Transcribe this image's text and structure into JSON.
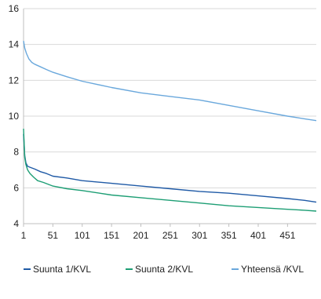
{
  "chart_data": {
    "type": "line",
    "title": "",
    "xlabel": "",
    "ylabel": "",
    "ylim": [
      4,
      16
    ],
    "xlim": [
      1,
      500
    ],
    "yticks": [
      4,
      6,
      8,
      10,
      12,
      14,
      16
    ],
    "xticks": [
      1,
      51,
      101,
      151,
      201,
      251,
      301,
      351,
      401,
      451
    ],
    "grid": "horizontal",
    "legend_position": "bottom",
    "series": [
      {
        "name": "Suunta 1/KVL",
        "color": "#1f5aa6",
        "x": [
          1,
          3,
          5,
          8,
          12,
          20,
          30,
          40,
          51,
          75,
          101,
          151,
          201,
          251,
          301,
          351,
          401,
          451,
          480,
          500
        ],
        "y": [
          9.0,
          7.8,
          7.4,
          7.2,
          7.15,
          7.05,
          6.9,
          6.8,
          6.65,
          6.55,
          6.4,
          6.25,
          6.1,
          5.95,
          5.8,
          5.7,
          5.55,
          5.4,
          5.3,
          5.2
        ]
      },
      {
        "name": "Suunta 2/KVL",
        "color": "#1d9e74",
        "x": [
          1,
          3,
          5,
          8,
          12,
          18,
          25,
          35,
          51,
          75,
          101,
          151,
          201,
          251,
          301,
          351,
          401,
          451,
          480,
          500
        ],
        "y": [
          9.3,
          7.7,
          7.3,
          7.0,
          6.8,
          6.6,
          6.4,
          6.3,
          6.1,
          5.95,
          5.85,
          5.6,
          5.45,
          5.3,
          5.15,
          5.0,
          4.9,
          4.8,
          4.75,
          4.7
        ]
      },
      {
        "name": "Yhteensä /KVL",
        "color": "#6aa8dc",
        "x": [
          1,
          3,
          6,
          10,
          15,
          20,
          30,
          40,
          51,
          75,
          101,
          151,
          201,
          251,
          301,
          351,
          401,
          451,
          480,
          500
        ],
        "y": [
          14.2,
          13.8,
          13.5,
          13.2,
          13.0,
          12.9,
          12.75,
          12.6,
          12.45,
          12.2,
          11.95,
          11.6,
          11.3,
          11.1,
          10.9,
          10.6,
          10.3,
          10.0,
          9.85,
          9.75
        ]
      }
    ]
  }
}
